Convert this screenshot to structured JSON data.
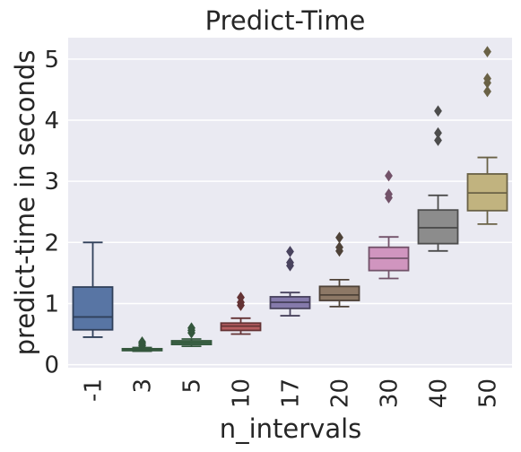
{
  "chart_data": {
    "type": "box",
    "title": "Predict-Time",
    "xlabel": "n_intervals",
    "ylabel": "predict-time in seconds",
    "ylim": [
      -0.05,
      5.35
    ],
    "y_ticks": [
      0,
      1,
      2,
      3,
      4,
      5
    ],
    "grid": true,
    "background": "#eaeaf2",
    "categories": [
      "-1",
      "3",
      "5",
      "10",
      "17",
      "20",
      "30",
      "40",
      "50"
    ],
    "boxes": [
      {
        "category": "-1",
        "whisker_low": 0.45,
        "q1": 0.57,
        "median": 0.78,
        "q3": 1.27,
        "whisker_high": 2.0,
        "outliers": [],
        "color": "#5875a4"
      },
      {
        "category": "3",
        "whisker_low": 0.22,
        "q1": 0.23,
        "median": 0.24,
        "q3": 0.26,
        "whisker_high": 0.28,
        "outliers": [
          0.31,
          0.34,
          0.37
        ],
        "color": "#5f9e6e"
      },
      {
        "category": "5",
        "whisker_low": 0.3,
        "q1": 0.33,
        "median": 0.36,
        "q3": 0.39,
        "whisker_high": 0.42,
        "outliers": [
          0.52,
          0.56,
          0.6
        ],
        "color": "#5f9e6e"
      },
      {
        "category": "10",
        "whisker_low": 0.5,
        "q1": 0.56,
        "median": 0.63,
        "q3": 0.68,
        "whisker_high": 0.76,
        "outliers": [
          0.97,
          1.02,
          1.1
        ],
        "color": "#b55d60"
      },
      {
        "category": "17",
        "whisker_low": 0.8,
        "q1": 0.92,
        "median": 1.02,
        "q3": 1.11,
        "whisker_high": 1.18,
        "outliers": [
          1.62,
          1.67,
          1.85
        ],
        "color": "#857aab"
      },
      {
        "category": "20",
        "whisker_low": 0.95,
        "q1": 1.05,
        "median": 1.14,
        "q3": 1.28,
        "whisker_high": 1.39,
        "outliers": [
          1.86,
          1.92,
          2.08
        ],
        "color": "#8d7866"
      },
      {
        "category": "30",
        "whisker_low": 1.41,
        "q1": 1.54,
        "median": 1.74,
        "q3": 1.92,
        "whisker_high": 2.09,
        "outliers": [
          2.73,
          2.79,
          3.09
        ],
        "color": "#d095bf"
      },
      {
        "category": "40",
        "whisker_low": 1.86,
        "q1": 1.98,
        "median": 2.24,
        "q3": 2.53,
        "whisker_high": 2.77,
        "outliers": [
          3.67,
          3.79,
          4.15
        ],
        "color": "#8c8c8c"
      },
      {
        "category": "50",
        "whisker_low": 2.3,
        "q1": 2.52,
        "median": 2.81,
        "q3": 3.12,
        "whisker_high": 3.39,
        "outliers": [
          4.47,
          4.61,
          4.68,
          5.12
        ],
        "color": "#c1b37f"
      }
    ]
  }
}
